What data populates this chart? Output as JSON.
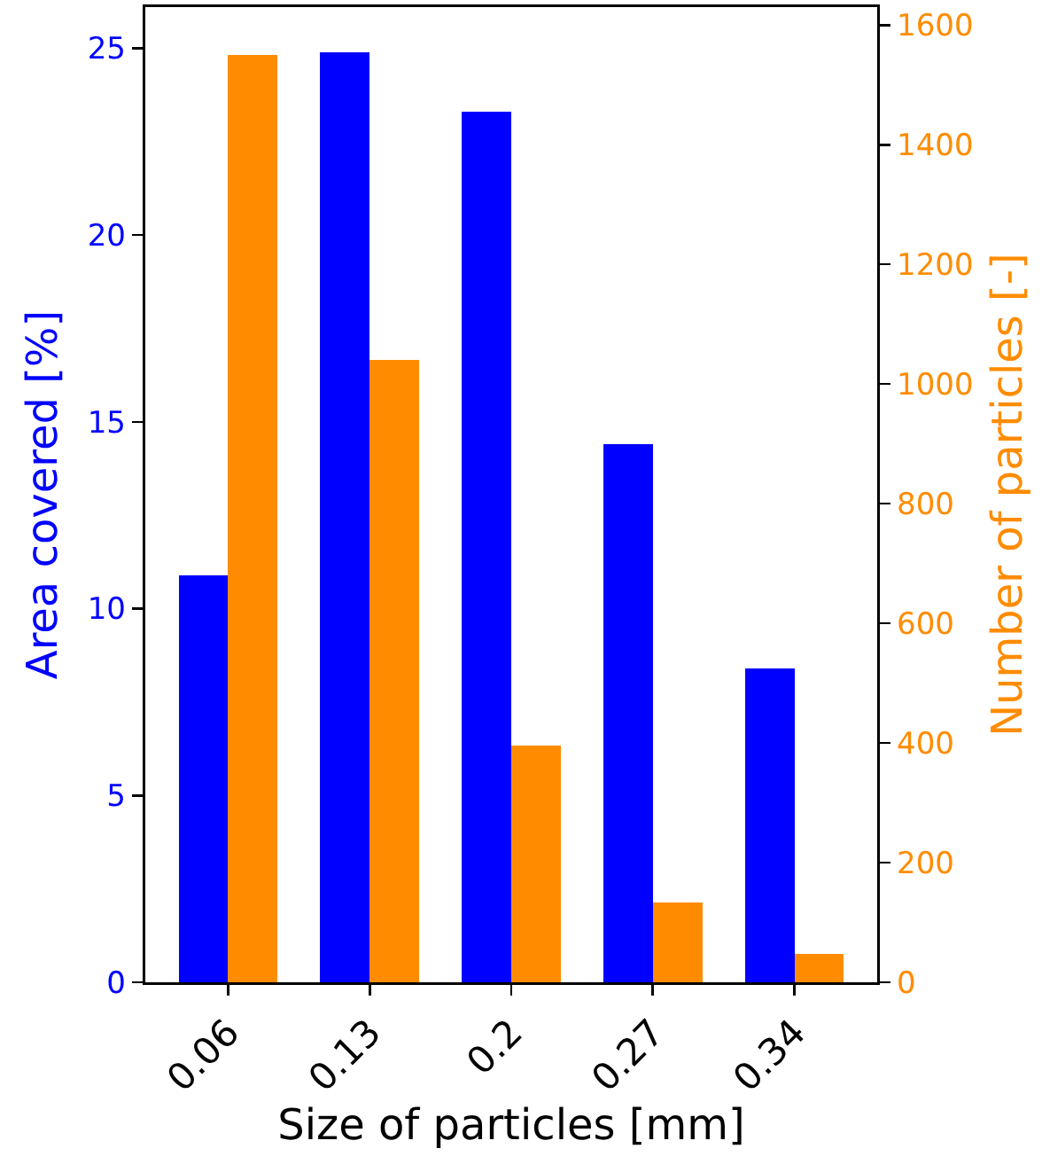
{
  "chart_data": {
    "type": "bar",
    "xlabel": "Size of particles [mm]",
    "ylabel": "Area covered [%]",
    "y2label": "Number of particles [-]",
    "categories": [
      "0.06",
      "0.13",
      "0.2",
      "0.27",
      "0.34"
    ],
    "series": [
      {
        "color": "#0000ff",
        "values": [
          10.9,
          24.9,
          23.3,
          14.4,
          8.4
        ]
      },
      {
        "color": "#ff8c00",
        "axis": "y2",
        "values": [
          1550,
          1040,
          395,
          133,
          47
        ]
      }
    ],
    "ylim": [
      0,
      26.1
    ],
    "yticks": [
      0,
      5,
      10,
      15,
      20,
      25
    ],
    "y2lim": [
      0,
      1630
    ],
    "y2ticks": [
      0,
      200,
      400,
      600,
      800,
      1000,
      1200,
      1400,
      1600
    ],
    "grid": false,
    "legend": false
  }
}
